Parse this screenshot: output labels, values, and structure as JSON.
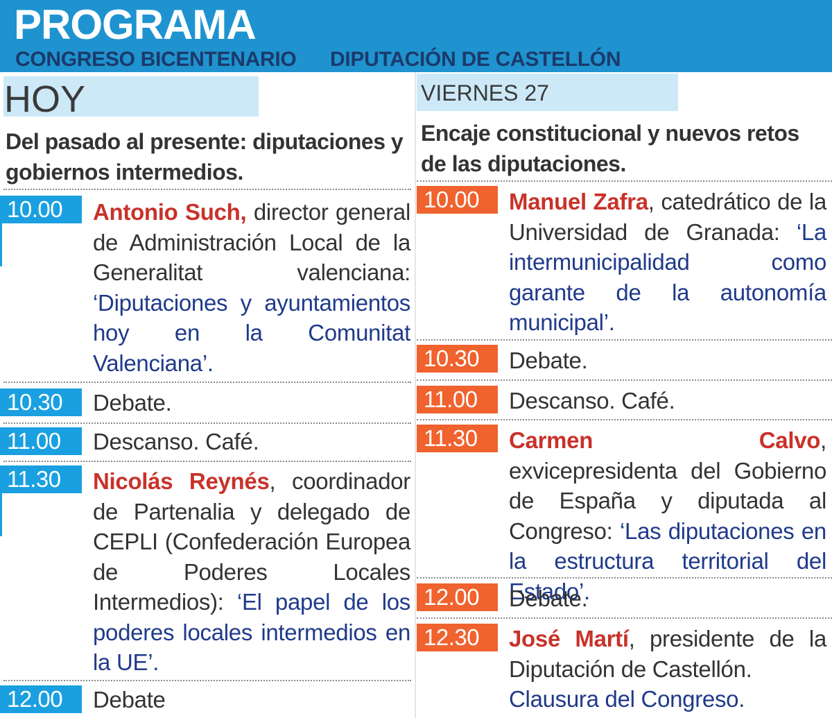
{
  "header": {
    "title": "PROGRAMA",
    "subtitle_left": "CONGRESO BICENTENARIO",
    "subtitle_right": "DIPUTACIÓN DE CASTELLÓN"
  },
  "colors": {
    "header_bg": "#1f93cf",
    "time_blue": "#1aa0e0",
    "time_orange": "#f0622e",
    "speaker": "#c8322a",
    "talk": "#1f3a8a",
    "day_band": "#cde9f8"
  },
  "left": {
    "day": "HOY",
    "theme": "Del pasado al presente: diputaciones y gobiernos intermedios.",
    "items": [
      {
        "time": "10.00",
        "speaker": "Antonio Such,",
        "role": " director general de Administración Local de la Generalitat valenciana: ",
        "talk": "‘Diputaciones y ayuntamientos hoy en la Comunitat Valenciana’."
      },
      {
        "time": "10.30",
        "text": "Debate."
      },
      {
        "time": "11.00",
        "text": "Descanso. Café."
      },
      {
        "time": "11.30",
        "speaker": "Nicolás Reynés",
        "role": ", coordinador de Partenalia y delegado de CEPLI (Confederación Europea de Poderes Locales Intermedios): ",
        "talk": "‘El papel de los poderes locales intermedios en la UE’."
      },
      {
        "time": "12.00",
        "text": "Debate"
      }
    ]
  },
  "right": {
    "day": "VIERNES 27",
    "theme": "Encaje constitucional y nuevos retos de las diputaciones.",
    "items": [
      {
        "time": "10.00",
        "speaker": "Manuel Zafra",
        "role": ", catedrático de la Universidad de Granada: ",
        "talk": "‘La intermunicipalidad como garante de la autonomía municipal’."
      },
      {
        "time": "10.30",
        "text": "Debate."
      },
      {
        "time": "11.00",
        "text": "Descanso. Café."
      },
      {
        "time": "11.30",
        "speaker": "Carmen Calvo",
        "role": ", exvicepresidenta del Gobierno de España y diputada al Congreso: ",
        "talk": "‘Las diputaciones en la estructura territorial del Estado’."
      },
      {
        "time": "12.00",
        "text": "Debate."
      },
      {
        "time": "12.30",
        "speaker": "José Martí",
        "role": ", presidente de la Diputación de Castellón.",
        "closing": "Clausura del Congreso."
      }
    ]
  }
}
